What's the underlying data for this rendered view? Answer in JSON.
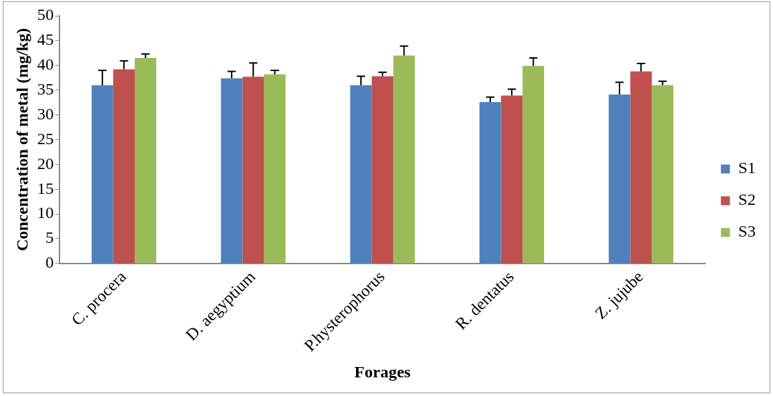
{
  "chart_data": {
    "type": "bar",
    "xlabel": "Forages",
    "ylabel": "Concentration of metal (mg/kg)",
    "categories": [
      "C. procera",
      "D. aegyptium",
      "P.hysterophorus",
      "R. dentatus",
      "Z. jujube"
    ],
    "series": [
      {
        "name": "S1",
        "color": "#4f81bd",
        "values": [
          36.0,
          37.4,
          36.0,
          32.6,
          34.1
        ],
        "errors": [
          [
            36.0,
            39.0
          ],
          [
            37.4,
            38.8
          ],
          [
            36.0,
            37.8
          ],
          [
            32.6,
            33.6
          ],
          [
            34.1,
            36.6
          ]
        ]
      },
      {
        "name": "S2",
        "color": "#c0504d",
        "values": [
          39.2,
          37.7,
          37.8,
          33.9,
          38.8
        ],
        "errors": [
          [
            39.2,
            40.9
          ],
          [
            37.7,
            40.5
          ],
          [
            37.8,
            38.6
          ],
          [
            33.9,
            35.2
          ],
          [
            38.8,
            40.4
          ]
        ]
      },
      {
        "name": "S3",
        "color": "#9bbb59",
        "values": [
          41.5,
          38.2,
          42.0,
          39.9,
          36.0
        ],
        "errors": [
          [
            41.5,
            42.3
          ],
          [
            38.2,
            39.0
          ],
          [
            42.0,
            43.9
          ],
          [
            39.9,
            41.5
          ],
          [
            36.0,
            36.8
          ]
        ]
      }
    ],
    "ylim": [
      0,
      50
    ],
    "yticks": [
      0,
      5,
      10,
      15,
      20,
      25,
      30,
      35,
      40,
      45,
      50
    ],
    "grid": false,
    "legend": "right"
  }
}
